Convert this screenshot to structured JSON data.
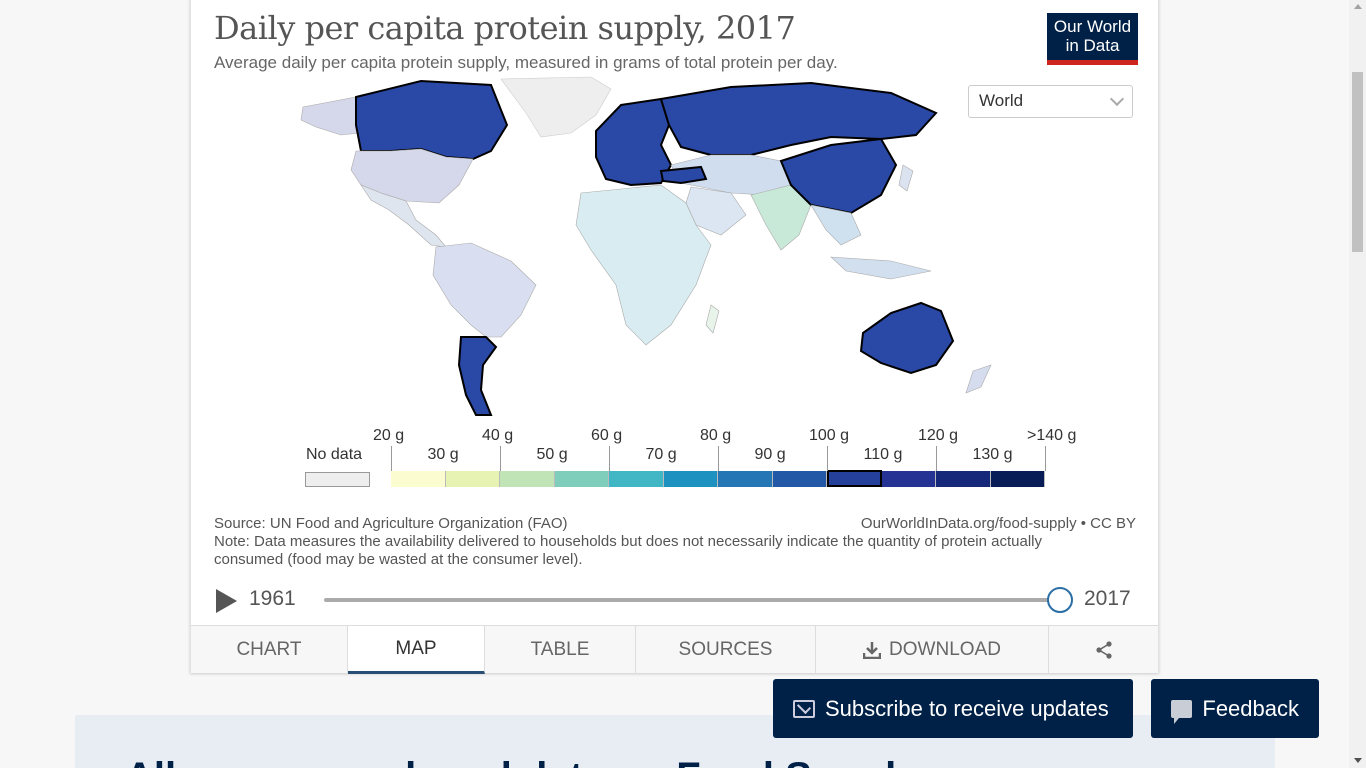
{
  "chart": {
    "title": "Daily per capita protein supply, 2017",
    "subtitle": "Average daily per capita protein supply, measured in grams of total protein per day.",
    "logo_line1": "Our World",
    "logo_line2": "in Data",
    "entity_selector": "World",
    "source": "Source: UN Food and Agriculture Organization (FAO)",
    "attribution": "OurWorldInData.org/food-supply • CC BY",
    "note": "Note: Data measures the availability delivered to households but does not necessarily indicate the quantity of protein actually consumed (food may be wasted at the consumer level)."
  },
  "legend": {
    "no_data_label": "No data",
    "upper_labels": [
      "20 g",
      "40 g",
      "60 g",
      "80 g",
      "100 g",
      "120 g",
      ">140 g"
    ],
    "lower_labels": [
      "30 g",
      "50 g",
      "70 g",
      "90 g",
      "110 g",
      "130 g"
    ],
    "bin_colors": [
      "#fbfdd0",
      "#e6f3b3",
      "#c0e4b5",
      "#7fcdbb",
      "#41b6c4",
      "#1d91c0",
      "#2476b5",
      "#2258a6",
      "#24409a",
      "#253494",
      "#16287a",
      "#081d58"
    ],
    "no_data_color": "#eeeeee",
    "highlighted_bin": 8
  },
  "timeline": {
    "start_year": "1961",
    "end_year": "2017",
    "position": 1.0
  },
  "tabs": {
    "chart": "CHART",
    "map": "MAP",
    "table": "TABLE",
    "sources": "SOURCES",
    "download": "DOWNLOAD"
  },
  "buttons": {
    "subscribe": "Subscribe to receive updates",
    "feedback": "Feedback"
  },
  "lower": {
    "heading": "All our research and data on Food Supply"
  }
}
